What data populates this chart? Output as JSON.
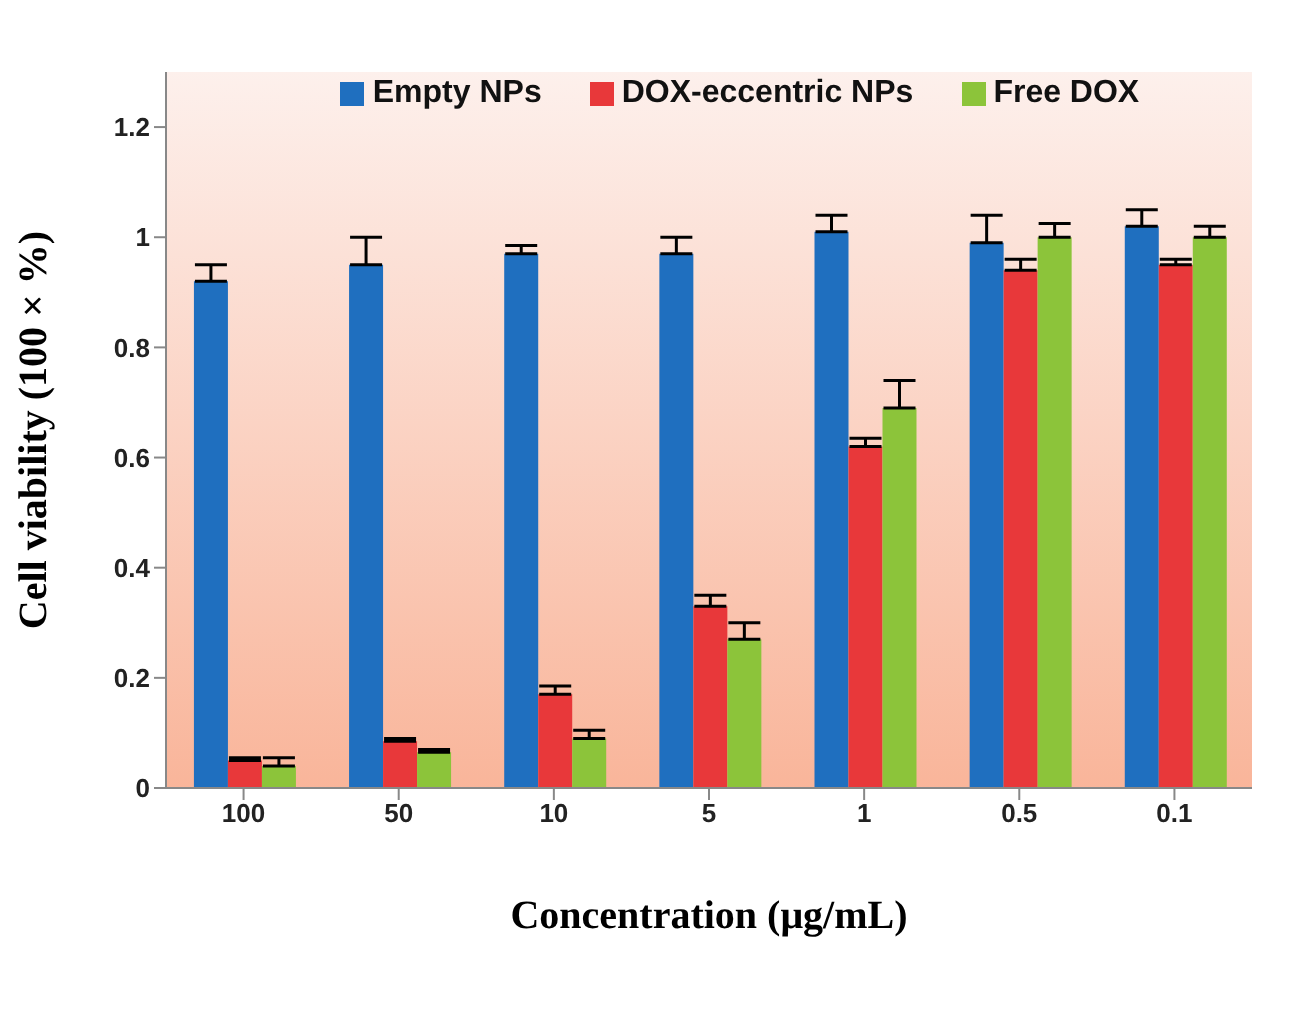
{
  "chart_data": {
    "type": "bar",
    "xlabel": "Concentration (μg/mL)",
    "ylabel": "Cell viability (100 × %)",
    "categories": [
      "100",
      "50",
      "10",
      "5",
      "1",
      "0.5",
      "0.1"
    ],
    "series": [
      {
        "name": "Empty NPs",
        "color": "#1f6fbf",
        "values": [
          0.92,
          0.95,
          0.97,
          0.97,
          1.01,
          0.99,
          1.02
        ],
        "errors": [
          0.03,
          0.05,
          0.015,
          0.03,
          0.03,
          0.05,
          0.03
        ]
      },
      {
        "name": "DOX-eccentric NPs",
        "color": "#e8383a",
        "values": [
          0.05,
          0.085,
          0.17,
          0.33,
          0.62,
          0.94,
          0.95
        ],
        "errors": [
          0.005,
          0.005,
          0.015,
          0.02,
          0.015,
          0.02,
          0.01
        ]
      },
      {
        "name": "Free DOX",
        "color": "#8cc43a",
        "values": [
          0.04,
          0.065,
          0.09,
          0.27,
          0.69,
          1.0,
          1.0
        ],
        "errors": [
          0.015,
          0.005,
          0.015,
          0.03,
          0.05,
          0.025,
          0.02
        ]
      }
    ],
    "ylim": [
      0,
      1.3
    ],
    "yticks": [
      0,
      0.2,
      0.4,
      0.6,
      0.8,
      1,
      1.2
    ],
    "legend": "top",
    "grid": false
  }
}
